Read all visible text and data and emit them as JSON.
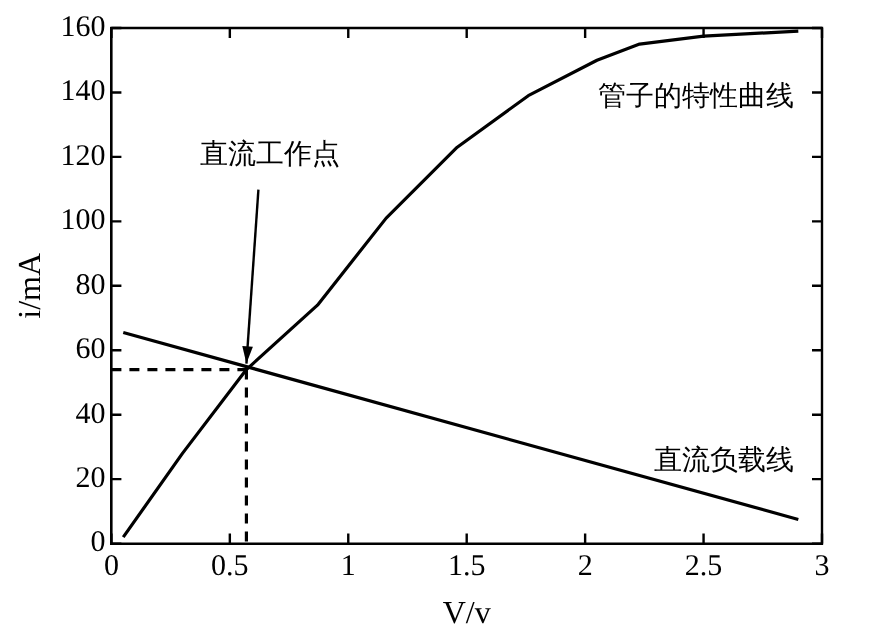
{
  "chart_data": {
    "type": "line",
    "xlabel": "V/v",
    "ylabel": "i/mA",
    "xlim": [
      0,
      3
    ],
    "xticks": [
      0,
      0.5,
      1,
      1.5,
      2,
      2.5,
      3
    ],
    "ylim": [
      0,
      160
    ],
    "yticks": [
      0,
      20,
      40,
      60,
      80,
      100,
      120,
      140,
      160
    ],
    "grid": false,
    "legend": false,
    "marker": "none",
    "series": [
      {
        "color": "#000000",
        "line_style": "solid",
        "x": [
          0.05,
          0.3,
          0.57,
          0.87,
          1.16,
          1.46,
          1.76,
          2.05,
          2.23,
          2.5,
          2.9
        ],
        "values": [
          2,
          28,
          54,
          74,
          101,
          123,
          139,
          150,
          155,
          157.5,
          159
        ]
      },
      {
        "color": "#000000",
        "line_style": "solid",
        "x": [
          0.05,
          2.9
        ],
        "values": [
          65.5,
          7.5
        ]
      },
      {
        "color": "#000000",
        "line_style": "dashed",
        "x": [
          0,
          0.57
        ],
        "values": [
          54,
          54
        ]
      },
      {
        "color": "#000000",
        "line_style": "dashed",
        "x": [
          0.57,
          0.57
        ],
        "values": [
          54,
          0
        ]
      }
    ],
    "annotations": [
      {
        "text": "直流工作点",
        "x": 0.57,
        "y": 54
      },
      "管子的特性曲线",
      "直流负载线"
    ]
  }
}
